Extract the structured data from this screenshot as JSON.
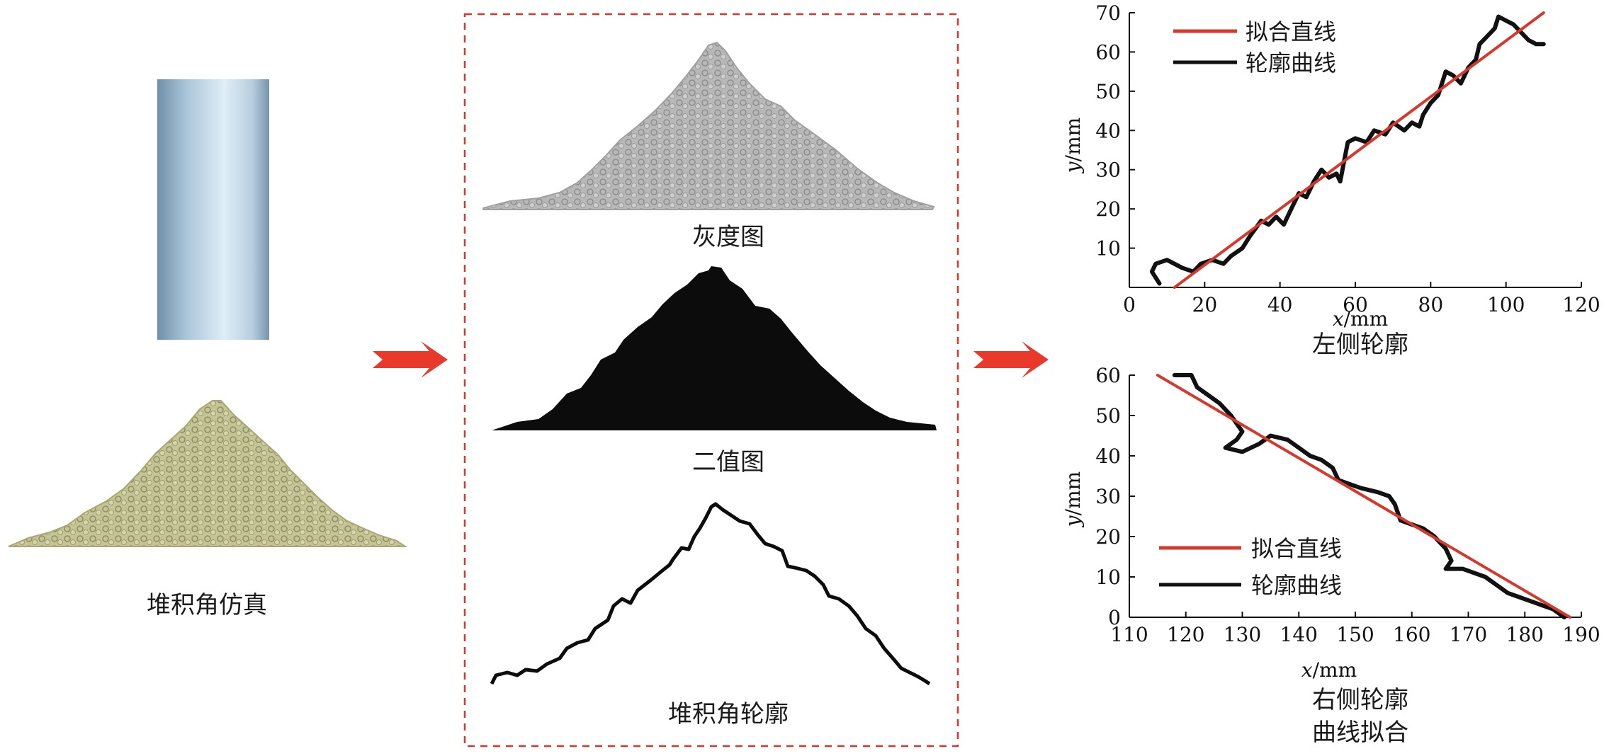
{
  "left": {
    "caption": "堆积角仿真"
  },
  "middle": {
    "gray_caption": "灰度图",
    "binary_caption": "二值图",
    "contour_caption": "堆积角轮廓"
  },
  "colors": {
    "fit_line": "#d8372b",
    "contour": "#111111",
    "arrow": "#e8392b",
    "dashed_box": "#d8372b",
    "gray_heap": "#b4b4b4",
    "sim_heap": "#c7c699",
    "cylinder_light": "#dfeef7",
    "cylinder_dark": "#6f8fa8"
  },
  "icons": [
    "right-arrow-icon",
    "right-arrow-icon"
  ],
  "chart_data": [
    {
      "type": "line",
      "caption": "左侧轮廓",
      "xlabel_italic": "x",
      "xlabel_unit": "/mm",
      "ylabel_italic": "y",
      "ylabel_unit": "/mm",
      "xlim": [
        0,
        120
      ],
      "ylim": [
        0,
        70
      ],
      "xticks": [
        "0",
        "20",
        "40",
        "60",
        "80",
        "100",
        "120"
      ],
      "yticks": [
        "10",
        "20",
        "30",
        "40",
        "50",
        "60",
        "70"
      ],
      "legend": {
        "position": "top-left",
        "entries": [
          "拟合直线",
          "轮廓曲线"
        ]
      },
      "series": [
        {
          "name": "拟合直线",
          "color": "#d8372b",
          "x": [
            12,
            110
          ],
          "y": [
            0,
            70
          ]
        },
        {
          "name": "轮廓曲线",
          "color": "#111111",
          "x": [
            8,
            6,
            7,
            10,
            14,
            17,
            19,
            22,
            25,
            27,
            30,
            32,
            35,
            37,
            39,
            41,
            43,
            45,
            47,
            49,
            51,
            53,
            55,
            56,
            57,
            58,
            60,
            63,
            65,
            68,
            70,
            73,
            75,
            77,
            78,
            80,
            82,
            84,
            86,
            88,
            90,
            92,
            93,
            95,
            97,
            98,
            100,
            102,
            104,
            106,
            108,
            110
          ],
          "y": [
            1,
            4,
            6,
            7,
            5,
            4,
            6,
            7,
            6,
            8,
            10,
            13,
            17,
            16,
            18,
            16,
            20,
            24,
            23,
            27,
            30,
            28,
            29,
            27,
            32,
            37,
            38,
            37,
            40,
            39,
            42,
            40,
            42,
            41,
            44,
            47,
            49,
            55,
            54,
            52,
            56,
            58,
            62,
            64,
            66,
            69,
            68,
            67,
            65,
            63,
            62,
            62
          ]
        }
      ]
    },
    {
      "type": "line",
      "caption_line1": "右侧轮廓",
      "caption_line2": "曲线拟合",
      "xlabel_italic": "x",
      "xlabel_unit": "/mm",
      "ylabel_italic": "y",
      "ylabel_unit": "/mm",
      "xlim": [
        110,
        190
      ],
      "ylim": [
        0,
        60
      ],
      "xticks": [
        "110",
        "120",
        "130",
        "140",
        "150",
        "160",
        "170",
        "180",
        "190"
      ],
      "yticks": [
        "0",
        "10",
        "20",
        "30",
        "40",
        "50",
        "60"
      ],
      "legend": {
        "position": "bottom-left",
        "entries": [
          "拟合直线",
          "轮廓曲线"
        ]
      },
      "series": [
        {
          "name": "拟合直线",
          "color": "#d8372b",
          "x": [
            115,
            188
          ],
          "y": [
            60,
            0
          ]
        },
        {
          "name": "轮廓曲线",
          "color": "#111111",
          "x": [
            118,
            121,
            122,
            124,
            126,
            128,
            130,
            129,
            127,
            130,
            133,
            135,
            138,
            140,
            142,
            144,
            146,
            147,
            149,
            151,
            154,
            156,
            157,
            158,
            160,
            162,
            164,
            166,
            167,
            166,
            169,
            171,
            173,
            175,
            177,
            179,
            181,
            183,
            185,
            187
          ],
          "y": [
            60,
            60,
            57,
            55,
            53,
            50,
            46,
            44,
            42,
            41,
            43,
            45,
            44,
            42,
            40,
            39,
            37,
            34,
            33,
            32,
            31,
            30,
            28,
            24,
            23,
            22,
            20,
            17,
            14,
            12,
            12,
            11,
            10,
            8,
            6,
            5,
            4,
            3,
            2,
            0
          ]
        }
      ]
    }
  ]
}
